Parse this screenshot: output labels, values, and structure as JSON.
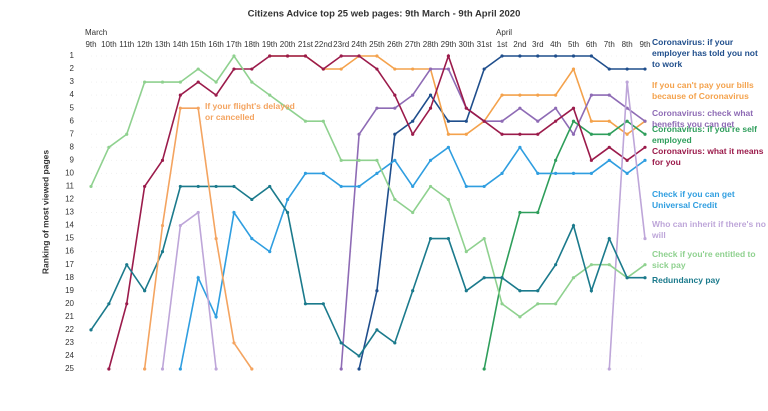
{
  "chart_data": {
    "type": "bump",
    "title": "Citizens Advice top 25 web pages: 9th March - 9th April 2020",
    "y_label": "Ranking of most viewed pages",
    "months": [
      {
        "label": "March",
        "index": 0
      },
      {
        "label": "April",
        "index": 23
      }
    ],
    "categories": [
      "9th",
      "10th",
      "11th",
      "12th",
      "13th",
      "14th",
      "15th",
      "16th",
      "17th",
      "18th",
      "19th",
      "20th",
      "21st",
      "22nd",
      "23rd",
      "24th",
      "25th",
      "26th",
      "27th",
      "28th",
      "29th",
      "30th",
      "31st",
      "1st",
      "2nd",
      "3rd",
      "4th",
      "5th",
      "6th",
      "7th",
      "8th",
      "9th"
    ],
    "ylim": [
      1,
      25
    ],
    "y_inverted": true,
    "yticks": [
      1,
      2,
      3,
      4,
      5,
      6,
      7,
      8,
      9,
      10,
      11,
      12,
      13,
      14,
      15,
      16,
      17,
      18,
      19,
      20,
      21,
      22,
      23,
      24,
      25
    ],
    "series": [
      {
        "name": "Coronavirus: if your employer has told you not to work",
        "color": "#1f4e8c",
        "values": [
          null,
          null,
          null,
          null,
          null,
          null,
          null,
          null,
          null,
          null,
          null,
          null,
          null,
          null,
          null,
          25,
          19,
          7,
          6,
          4,
          6,
          6,
          2,
          1,
          1,
          1,
          1,
          1,
          1,
          2,
          2,
          2
        ]
      },
      {
        "name": "If you can't pay your bills because of Coronavirus",
        "color": "#f4a24c",
        "values": [
          null,
          null,
          null,
          null,
          null,
          null,
          null,
          null,
          null,
          null,
          1,
          1,
          1,
          2,
          2,
          1,
          1,
          2,
          2,
          2,
          7,
          7,
          6,
          4,
          4,
          4,
          4,
          2,
          6,
          6,
          7,
          6
        ]
      },
      {
        "name": "Coronavirus: check what benefits you can get",
        "color": "#8e6bb5",
        "values": [
          null,
          null,
          null,
          null,
          null,
          null,
          null,
          null,
          null,
          null,
          null,
          null,
          null,
          null,
          25,
          7,
          5,
          5,
          4,
          2,
          2,
          5,
          6,
          6,
          5,
          6,
          5,
          7,
          4,
          4,
          5,
          6
        ]
      },
      {
        "name": "Coronavirus: if you're self employed",
        "color": "#2e9e5b",
        "values": [
          null,
          null,
          null,
          null,
          null,
          null,
          null,
          null,
          null,
          null,
          null,
          null,
          null,
          null,
          null,
          null,
          null,
          null,
          null,
          null,
          null,
          null,
          25,
          18,
          13,
          13,
          9,
          6,
          7,
          7,
          6,
          7
        ]
      },
      {
        "name": "Coronavirus: what it means for you",
        "color": "#9b1b4b",
        "values": [
          null,
          25,
          20,
          11,
          9,
          4,
          3,
          4,
          2,
          2,
          1,
          1,
          1,
          2,
          1,
          1,
          2,
          4,
          7,
          5,
          1,
          5,
          6,
          7,
          7,
          7,
          6,
          5,
          9,
          8,
          9,
          8
        ]
      },
      {
        "name": "Check if you can get Universal Credit",
        "color": "#2f9ee0",
        "values": [
          null,
          null,
          null,
          null,
          null,
          25,
          18,
          21,
          13,
          15,
          16,
          12,
          10,
          10,
          11,
          11,
          10,
          9,
          11,
          9,
          8,
          11,
          11,
          10,
          8,
          10,
          10,
          10,
          10,
          9,
          10,
          9
        ]
      },
      {
        "name": "Who can inherit if there's no will",
        "color": "#bea6d9",
        "values": [
          null,
          null,
          null,
          null,
          25,
          14,
          13,
          25,
          null,
          null,
          null,
          null,
          null,
          null,
          null,
          null,
          null,
          null,
          null,
          null,
          null,
          null,
          null,
          null,
          null,
          null,
          null,
          null,
          null,
          25,
          3,
          15
        ]
      },
      {
        "name": "Check if you're entitled to sick pay",
        "color": "#8fd18f",
        "values": [
          11,
          8,
          7,
          3,
          3,
          3,
          2,
          3,
          1,
          3,
          4,
          5,
          6,
          6,
          9,
          9,
          9,
          12,
          13,
          11,
          12,
          16,
          15,
          20,
          21,
          20,
          20,
          18,
          17,
          17,
          18,
          17
        ]
      },
      {
        "name": "Redundancy pay",
        "color": "#1b7a8c",
        "values": [
          22,
          20,
          17,
          19,
          16,
          11,
          11,
          11,
          11,
          12,
          11,
          13,
          20,
          20,
          23,
          24,
          22,
          23,
          19,
          15,
          15,
          19,
          18,
          18,
          19,
          19,
          17,
          14,
          19,
          15,
          18,
          18
        ]
      },
      {
        "name": "If your flight's delayed or cancelled",
        "color": "#f4a460",
        "values": [
          null,
          null,
          null,
          25,
          14,
          5,
          5,
          15,
          23,
          25,
          null,
          null,
          null,
          null,
          null,
          null,
          null,
          null,
          null,
          null,
          null,
          null,
          null,
          null,
          null,
          null,
          null,
          null,
          null,
          null,
          null,
          null
        ]
      }
    ]
  }
}
